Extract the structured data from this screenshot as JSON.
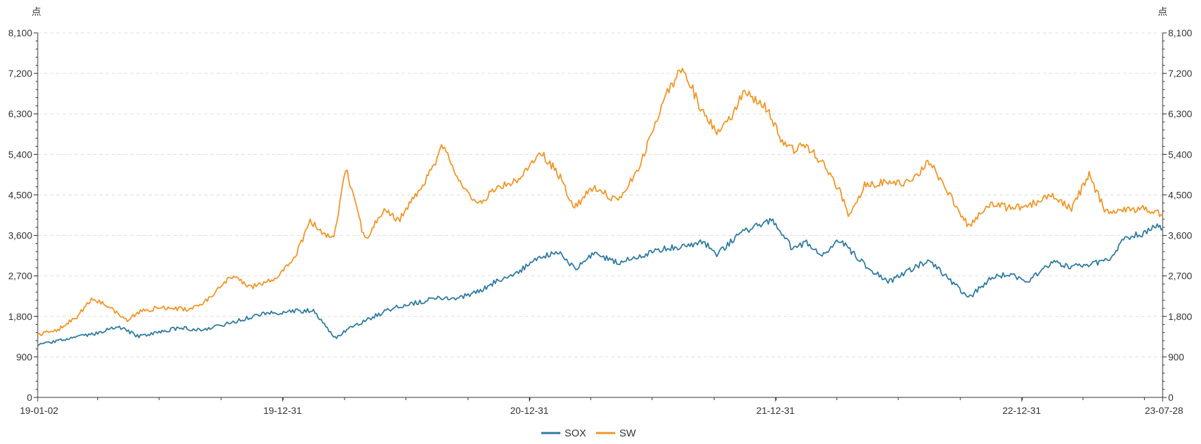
{
  "chart_data": {
    "type": "line",
    "y_unit_left": "点",
    "y_unit_right": "点",
    "ylim": [
      0,
      8100
    ],
    "y_ticks": [
      0,
      900,
      1800,
      2700,
      3600,
      4500,
      5400,
      6300,
      7200,
      8100
    ],
    "y_tick_labels": [
      "0",
      "900",
      "1,800",
      "2,700",
      "3,600",
      "4,500",
      "5,400",
      "6,300",
      "7,200",
      "8,100"
    ],
    "x_range": [
      "2019-01-02",
      "2023-07-28"
    ],
    "x_ticks": [
      {
        "date": "2019-01-02",
        "label": "19-01-02"
      },
      {
        "date": "2019-12-31",
        "label": "19-12-31"
      },
      {
        "date": "2020-12-31",
        "label": "20-12-31"
      },
      {
        "date": "2021-12-31",
        "label": "21-12-31"
      },
      {
        "date": "2022-12-31",
        "label": "22-12-31"
      },
      {
        "date": "2023-07-28",
        "label": "23-07-28"
      }
    ],
    "grid": "horizontal-dashed",
    "legend_position": "bottom-center",
    "series": [
      {
        "name": "SOX",
        "color": "#2d7aa2",
        "points": [
          [
            "2019-01-02",
            1150
          ],
          [
            "2019-02-01",
            1260
          ],
          [
            "2019-03-01",
            1330
          ],
          [
            "2019-04-01",
            1430
          ],
          [
            "2019-05-01",
            1580
          ],
          [
            "2019-06-01",
            1350
          ],
          [
            "2019-07-01",
            1450
          ],
          [
            "2019-08-01",
            1550
          ],
          [
            "2019-09-01",
            1500
          ],
          [
            "2019-10-01",
            1600
          ],
          [
            "2019-11-01",
            1730
          ],
          [
            "2019-12-01",
            1850
          ],
          [
            "2020-01-15",
            1920
          ],
          [
            "2020-02-15",
            1930
          ],
          [
            "2020-03-18",
            1320
          ],
          [
            "2020-04-15",
            1600
          ],
          [
            "2020-05-15",
            1800
          ],
          [
            "2020-06-15",
            2000
          ],
          [
            "2020-07-15",
            2100
          ],
          [
            "2020-08-15",
            2200
          ],
          [
            "2020-09-15",
            2200
          ],
          [
            "2020-10-15",
            2350
          ],
          [
            "2020-11-15",
            2600
          ],
          [
            "2020-12-15",
            2800
          ],
          [
            "2021-01-15",
            3100
          ],
          [
            "2021-02-15",
            3250
          ],
          [
            "2021-03-08",
            2850
          ],
          [
            "2021-04-05",
            3200
          ],
          [
            "2021-05-12",
            3000
          ],
          [
            "2021-06-15",
            3150
          ],
          [
            "2021-07-15",
            3300
          ],
          [
            "2021-08-15",
            3350
          ],
          [
            "2021-09-15",
            3450
          ],
          [
            "2021-10-05",
            3200
          ],
          [
            "2021-11-15",
            3700
          ],
          [
            "2021-12-27",
            3950
          ],
          [
            "2022-01-25",
            3300
          ],
          [
            "2022-02-15",
            3450
          ],
          [
            "2022-03-08",
            3150
          ],
          [
            "2022-04-05",
            3500
          ],
          [
            "2022-05-12",
            2950
          ],
          [
            "2022-06-16",
            2550
          ],
          [
            "2022-07-20",
            2850
          ],
          [
            "2022-08-16",
            3050
          ],
          [
            "2022-09-30",
            2400
          ],
          [
            "2022-10-13",
            2200
          ],
          [
            "2022-11-15",
            2650
          ],
          [
            "2022-12-15",
            2750
          ],
          [
            "2023-01-05",
            2550
          ],
          [
            "2023-02-15",
            3000
          ],
          [
            "2023-03-15",
            2900
          ],
          [
            "2023-04-25",
            3000
          ],
          [
            "2023-05-15",
            3100
          ],
          [
            "2023-05-31",
            3550
          ],
          [
            "2023-06-30",
            3650
          ],
          [
            "2023-07-20",
            3850
          ],
          [
            "2023-07-28",
            3750
          ]
        ]
      },
      {
        "name": "SW",
        "color": "#f39424",
        "points": [
          [
            "2019-01-02",
            1400
          ],
          [
            "2019-02-01",
            1500
          ],
          [
            "2019-03-01",
            1800
          ],
          [
            "2019-03-25",
            2200
          ],
          [
            "2019-04-15",
            2050
          ],
          [
            "2019-05-15",
            1700
          ],
          [
            "2019-06-01",
            1900
          ],
          [
            "2019-07-01",
            2000
          ],
          [
            "2019-08-15",
            1950
          ],
          [
            "2019-09-15",
            2200
          ],
          [
            "2019-10-15",
            2700
          ],
          [
            "2019-11-15",
            2450
          ],
          [
            "2019-12-15",
            2600
          ],
          [
            "2020-01-15",
            3000
          ],
          [
            "2020-02-10",
            3900
          ],
          [
            "2020-03-16",
            3500
          ],
          [
            "2020-04-03",
            5100
          ],
          [
            "2020-05-01",
            3500
          ],
          [
            "2020-06-01",
            4200
          ],
          [
            "2020-06-20",
            3900
          ],
          [
            "2020-07-15",
            4500
          ],
          [
            "2020-08-03",
            4900
          ],
          [
            "2020-08-25",
            5600
          ],
          [
            "2020-09-15",
            4900
          ],
          [
            "2020-10-15",
            4250
          ],
          [
            "2020-11-15",
            4700
          ],
          [
            "2020-12-15",
            4800
          ],
          [
            "2021-01-15",
            5500
          ],
          [
            "2021-02-15",
            4900
          ],
          [
            "2021-03-08",
            4200
          ],
          [
            "2021-04-05",
            4700
          ],
          [
            "2021-05-12",
            4350
          ],
          [
            "2021-06-15",
            5200
          ],
          [
            "2021-07-15",
            6500
          ],
          [
            "2021-08-15",
            7350
          ],
          [
            "2021-09-15",
            6300
          ],
          [
            "2021-10-05",
            5900
          ],
          [
            "2021-10-25",
            6200
          ],
          [
            "2021-11-15",
            6800
          ],
          [
            "2021-12-15",
            6500
          ],
          [
            "2022-01-10",
            5700
          ],
          [
            "2022-01-25",
            5500
          ],
          [
            "2022-02-15",
            5600
          ],
          [
            "2022-03-15",
            5100
          ],
          [
            "2022-04-05",
            4600
          ],
          [
            "2022-04-20",
            4000
          ],
          [
            "2022-05-12",
            4700
          ],
          [
            "2022-06-16",
            4800
          ],
          [
            "2022-07-20",
            4750
          ],
          [
            "2022-08-16",
            5250
          ],
          [
            "2022-09-15",
            4500
          ],
          [
            "2022-10-13",
            3800
          ],
          [
            "2022-11-15",
            4300
          ],
          [
            "2022-12-15",
            4200
          ],
          [
            "2023-01-15",
            4300
          ],
          [
            "2023-02-15",
            4500
          ],
          [
            "2023-03-15",
            4200
          ],
          [
            "2023-04-10",
            4950
          ],
          [
            "2023-05-05",
            4100
          ],
          [
            "2023-06-01",
            4150
          ],
          [
            "2023-07-01",
            4200
          ],
          [
            "2023-07-28",
            4050
          ]
        ]
      }
    ]
  }
}
